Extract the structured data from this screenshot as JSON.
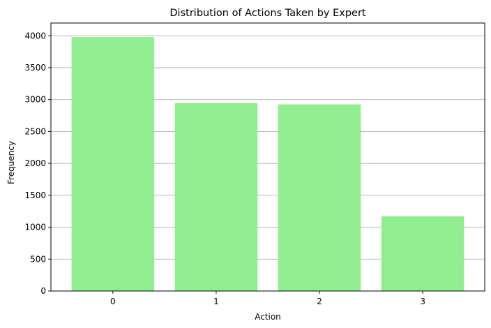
{
  "chart_data": {
    "type": "bar",
    "title": "Distribution of Actions Taken by Expert",
    "xlabel": "Action",
    "ylabel": "Frequency",
    "categories": [
      "0",
      "1",
      "2",
      "3"
    ],
    "values": [
      3980,
      2945,
      2925,
      1170
    ],
    "ylim": [
      0,
      4200
    ],
    "yticks": [
      0,
      500,
      1000,
      1500,
      2000,
      2500,
      3000,
      3500,
      4000
    ],
    "grid": "y",
    "bar_color": "#90ee90",
    "grid_color": "#b0b0b0"
  }
}
